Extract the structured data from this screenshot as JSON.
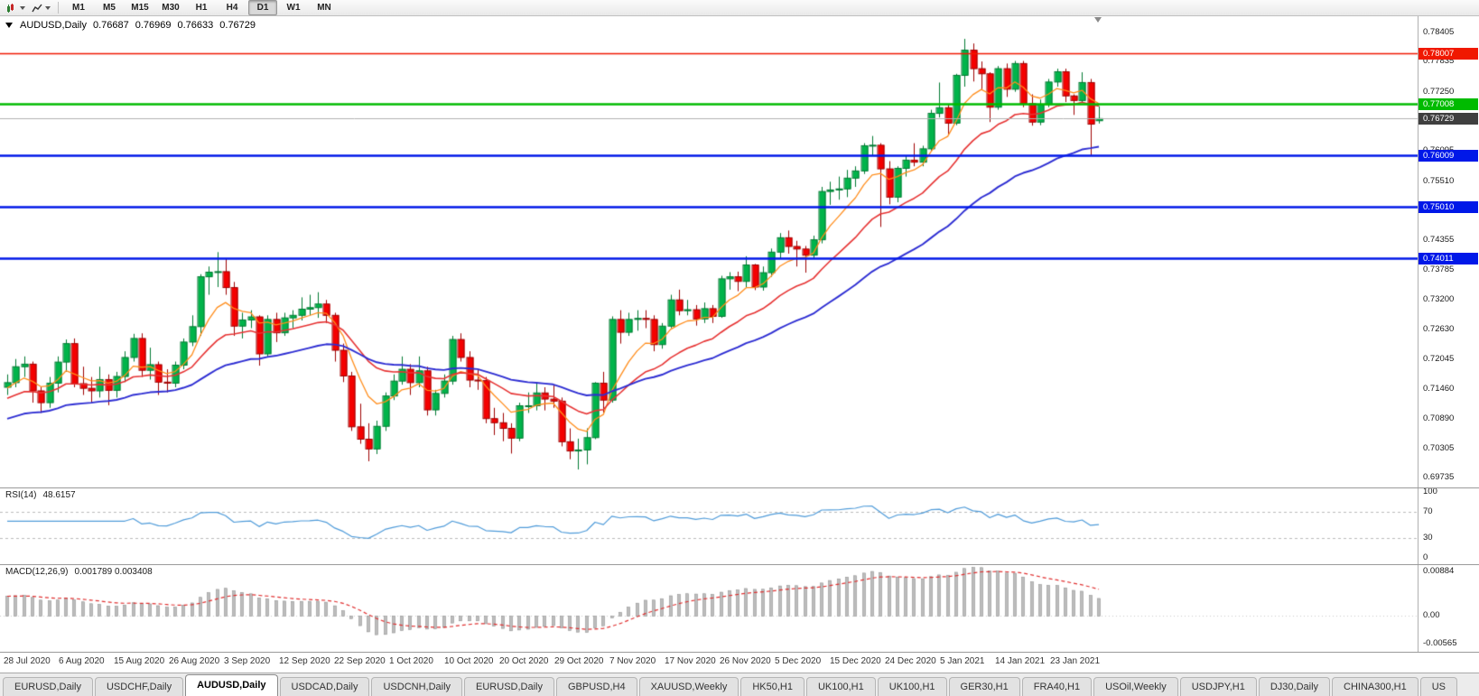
{
  "toolbar": {
    "timeframes": [
      "M1",
      "M5",
      "M15",
      "M30",
      "H1",
      "H4",
      "D1",
      "W1",
      "MN"
    ],
    "active_timeframe": "D1"
  },
  "header": {
    "symbol": "AUDUSD,Daily",
    "open": "0.76687",
    "high": "0.76969",
    "low": "0.76633",
    "close": "0.76729"
  },
  "panes": {
    "rsi_label": "RSI(14)",
    "rsi_value": "48.6157",
    "macd_label": "MACD(12,26,9)",
    "macd_values": "0.001789 0.003408"
  },
  "price_axis": {
    "ticks": [
      "0.78405",
      "0.77835",
      "0.77250",
      "0.76680",
      "0.76095",
      "0.75510",
      "0.74925",
      "0.74355",
      "0.73785",
      "0.73200",
      "0.72630",
      "0.72045",
      "0.71460",
      "0.70890",
      "0.70305",
      "0.69735"
    ]
  },
  "levels": [
    {
      "name": "resistance-line",
      "label": "0.78007",
      "color": "#f01800",
      "line_width": 1.5
    },
    {
      "name": "support-line-green",
      "label": "0.77008",
      "color": "#00bb00",
      "line_width": 2.5
    },
    {
      "name": "support-line-1",
      "label": "0.76009",
      "color": "#0018e8",
      "line_width": 2.5
    },
    {
      "name": "support-line-2",
      "label": "0.75010",
      "color": "#0018e8",
      "line_width": 2.5
    },
    {
      "name": "support-line-3",
      "label": "0.74011",
      "color": "#0018e8",
      "line_width": 2.5
    }
  ],
  "current_price": {
    "label": "0.76729",
    "value": 0.76729,
    "flag_color": "#3f3f3f",
    "line_color": "#b0b0b0"
  },
  "rsi_axis": {
    "ticks": [
      "100",
      "70",
      "30",
      "0"
    ]
  },
  "macd_axis": {
    "ticks": [
      "0.00884",
      "0.00",
      "-0.00565"
    ]
  },
  "date_axis": [
    "28 Jul 2020",
    "6 Aug 2020",
    "15 Aug 2020",
    "26 Aug 2020",
    "3 Sep 2020",
    "12 Sep 2020",
    "22 Sep 2020",
    "1 Oct 2020",
    "10 Oct 2020",
    "20 Oct 2020",
    "29 Oct 2020",
    "7 Nov 2020",
    "17 Nov 2020",
    "26 Nov 2020",
    "5 Dec 2020",
    "15 Dec 2020",
    "24 Dec 2020",
    "5 Jan 2021",
    "14 Jan 2021",
    "23 Jan 2021"
  ],
  "tabs": {
    "active_index": 2,
    "items": [
      "EURUSD,Daily",
      "USDCHF,Daily",
      "AUDUSD,Daily",
      "USDCAD,Daily",
      "USDCNH,Daily",
      "EURUSD,Daily",
      "GBPUSD,H4",
      "XAUUSD,Weekly",
      "HK50,H1",
      "UK100,H1",
      "UK100,H1",
      "GER30,H1",
      "FRA40,H1",
      "USOil,Weekly",
      "USDJPY,H1",
      "DJ30,Daily",
      "CHINA300,H1",
      "US"
    ]
  },
  "chart_data": [
    {
      "type": "candlestick",
      "symbol": "AUDUSD",
      "timeframe": "Daily",
      "title": "AUDUSD,Daily",
      "last_ohlc": [
        0.76687,
        0.76969,
        0.76633,
        0.76729
      ],
      "ylim": [
        0.6955,
        0.7872
      ],
      "up_color": "#00b44a",
      "down_color": "#f40000",
      "moving_averages": [
        {
          "name": "ma-fast",
          "period": 7,
          "seed": 0.7145,
          "color": "#ff8c1a",
          "width": 1.3
        },
        {
          "name": "ma-mid",
          "period": 18,
          "seed": 0.7125,
          "color": "#e63232",
          "width": 1.6
        },
        {
          "name": "ma-slow",
          "period": 40,
          "seed": 0.7085,
          "color": "#2d2dd2",
          "width": 1.9
        }
      ],
      "candles": [
        [
          0.715,
          0.7175,
          0.7135,
          0.7159
        ],
        [
          0.7159,
          0.7205,
          0.715,
          0.719
        ],
        [
          0.719,
          0.721,
          0.717,
          0.7195
        ],
        [
          0.7195,
          0.72,
          0.712,
          0.7143
        ],
        [
          0.7143,
          0.715,
          0.71,
          0.712
        ],
        [
          0.712,
          0.717,
          0.711,
          0.7158
        ],
        [
          0.7158,
          0.721,
          0.714,
          0.7199
        ],
        [
          0.7199,
          0.7243,
          0.718,
          0.7235
        ],
        [
          0.7235,
          0.7245,
          0.715,
          0.7157
        ],
        [
          0.7157,
          0.719,
          0.7135,
          0.7148
        ],
        [
          0.7148,
          0.717,
          0.712,
          0.7143
        ],
        [
          0.7143,
          0.719,
          0.713,
          0.7165
        ],
        [
          0.7165,
          0.7175,
          0.7115,
          0.7144
        ],
        [
          0.7144,
          0.718,
          0.713,
          0.7171
        ],
        [
          0.7171,
          0.722,
          0.716,
          0.7208
        ],
        [
          0.7208,
          0.7254,
          0.72,
          0.7245
        ],
        [
          0.7245,
          0.7255,
          0.717,
          0.7183
        ],
        [
          0.7183,
          0.7227,
          0.7165,
          0.7194
        ],
        [
          0.7194,
          0.72,
          0.7135,
          0.716
        ],
        [
          0.716,
          0.7185,
          0.714,
          0.7158
        ],
        [
          0.7158,
          0.72,
          0.715,
          0.7193
        ],
        [
          0.7193,
          0.7245,
          0.7185,
          0.7238
        ],
        [
          0.7238,
          0.729,
          0.723,
          0.7268
        ],
        [
          0.7268,
          0.737,
          0.725,
          0.7365
        ],
        [
          0.7365,
          0.7385,
          0.733,
          0.7374
        ],
        [
          0.7374,
          0.7413,
          0.7345,
          0.7375
        ],
        [
          0.7375,
          0.74,
          0.733,
          0.7344
        ],
        [
          0.7344,
          0.7355,
          0.725,
          0.7269
        ],
        [
          0.7269,
          0.7295,
          0.7245,
          0.7281
        ],
        [
          0.7281,
          0.73,
          0.7265,
          0.7287
        ],
        [
          0.7287,
          0.729,
          0.7192,
          0.7215
        ],
        [
          0.7215,
          0.729,
          0.721,
          0.7282
        ],
        [
          0.7282,
          0.7295,
          0.7238,
          0.7256
        ],
        [
          0.7256,
          0.7295,
          0.725,
          0.7285
        ],
        [
          0.7285,
          0.73,
          0.7265,
          0.729
        ],
        [
          0.729,
          0.7325,
          0.728,
          0.7302
        ],
        [
          0.7302,
          0.733,
          0.729,
          0.7305
        ],
        [
          0.7305,
          0.7335,
          0.7285,
          0.7312
        ],
        [
          0.7312,
          0.732,
          0.7275,
          0.729
        ],
        [
          0.729,
          0.7295,
          0.72,
          0.7222
        ],
        [
          0.7222,
          0.7235,
          0.716,
          0.7172
        ],
        [
          0.7172,
          0.718,
          0.7065,
          0.7073
        ],
        [
          0.7073,
          0.7118,
          0.704,
          0.7049
        ],
        [
          0.7049,
          0.708,
          0.7006,
          0.703
        ],
        [
          0.703,
          0.7085,
          0.702,
          0.7074
        ],
        [
          0.7074,
          0.714,
          0.7065,
          0.7133
        ],
        [
          0.7133,
          0.7175,
          0.7125,
          0.7162
        ],
        [
          0.7162,
          0.721,
          0.7155,
          0.7185
        ],
        [
          0.7185,
          0.7195,
          0.7135,
          0.7159
        ],
        [
          0.7159,
          0.721,
          0.715,
          0.7182
        ],
        [
          0.7182,
          0.719,
          0.7095,
          0.7106
        ],
        [
          0.7106,
          0.7145,
          0.7095,
          0.7138
        ],
        [
          0.7138,
          0.7175,
          0.713,
          0.7162
        ],
        [
          0.7162,
          0.725,
          0.7155,
          0.7243
        ],
        [
          0.7243,
          0.7255,
          0.72,
          0.7208
        ],
        [
          0.7208,
          0.722,
          0.715,
          0.7164
        ],
        [
          0.7164,
          0.7185,
          0.7145,
          0.7163
        ],
        [
          0.7163,
          0.717,
          0.708,
          0.7089
        ],
        [
          0.7089,
          0.711,
          0.7057,
          0.7081
        ],
        [
          0.7081,
          0.71,
          0.7045,
          0.707
        ],
        [
          0.707,
          0.708,
          0.7021,
          0.7051
        ],
        [
          0.7051,
          0.712,
          0.7045,
          0.7114
        ],
        [
          0.7114,
          0.714,
          0.71,
          0.7114
        ],
        [
          0.7114,
          0.716,
          0.7105,
          0.7139
        ],
        [
          0.7139,
          0.715,
          0.7105,
          0.7127
        ],
        [
          0.7127,
          0.7155,
          0.711,
          0.7123
        ],
        [
          0.7123,
          0.713,
          0.7035,
          0.7044
        ],
        [
          0.7044,
          0.707,
          0.701,
          0.7026
        ],
        [
          0.7026,
          0.705,
          0.699,
          0.7028
        ],
        [
          0.7028,
          0.707,
          0.7,
          0.7052
        ],
        [
          0.7052,
          0.716,
          0.7049,
          0.7158
        ],
        [
          0.7158,
          0.718,
          0.71,
          0.7125
        ],
        [
          0.7125,
          0.7288,
          0.712,
          0.7282
        ],
        [
          0.7282,
          0.73,
          0.7235,
          0.7257
        ],
        [
          0.7257,
          0.7295,
          0.725,
          0.7282
        ],
        [
          0.7282,
          0.73,
          0.726,
          0.7284
        ],
        [
          0.7284,
          0.73,
          0.7265,
          0.7282
        ],
        [
          0.7282,
          0.729,
          0.722,
          0.7233
        ],
        [
          0.7233,
          0.7275,
          0.7225,
          0.7269
        ],
        [
          0.7269,
          0.733,
          0.7265,
          0.732
        ],
        [
          0.732,
          0.734,
          0.729,
          0.7299
        ],
        [
          0.7299,
          0.732,
          0.729,
          0.7301
        ],
        [
          0.7301,
          0.731,
          0.727,
          0.7283
        ],
        [
          0.7283,
          0.7315,
          0.7275,
          0.7303
        ],
        [
          0.7303,
          0.731,
          0.7275,
          0.7288
        ],
        [
          0.7288,
          0.7367,
          0.7285,
          0.7361
        ],
        [
          0.7361,
          0.7374,
          0.734,
          0.7365
        ],
        [
          0.7365,
          0.7375,
          0.7337,
          0.7356
        ],
        [
          0.7356,
          0.7405,
          0.7345,
          0.7388
        ],
        [
          0.7388,
          0.739,
          0.7339,
          0.7345
        ],
        [
          0.7345,
          0.7385,
          0.7338,
          0.7373
        ],
        [
          0.7373,
          0.742,
          0.7365,
          0.7413
        ],
        [
          0.7413,
          0.745,
          0.74,
          0.7441
        ],
        [
          0.7441,
          0.7455,
          0.741,
          0.7424
        ],
        [
          0.7424,
          0.7435,
          0.7385,
          0.7419
        ],
        [
          0.7419,
          0.7425,
          0.7373,
          0.7407
        ],
        [
          0.7407,
          0.7445,
          0.74,
          0.7437
        ],
        [
          0.7437,
          0.754,
          0.743,
          0.7531
        ],
        [
          0.7531,
          0.755,
          0.7505,
          0.7534
        ],
        [
          0.7534,
          0.756,
          0.7515,
          0.7536
        ],
        [
          0.7536,
          0.7573,
          0.752,
          0.7557
        ],
        [
          0.7557,
          0.758,
          0.754,
          0.7571
        ],
        [
          0.7571,
          0.7625,
          0.7565,
          0.762
        ],
        [
          0.762,
          0.7639,
          0.76,
          0.7621
        ],
        [
          0.7621,
          0.7625,
          0.7462,
          0.7575
        ],
        [
          0.7575,
          0.759,
          0.7506,
          0.752
        ],
        [
          0.752,
          0.758,
          0.751,
          0.7576
        ],
        [
          0.7576,
          0.76,
          0.756,
          0.7592
        ],
        [
          0.7592,
          0.7625,
          0.758,
          0.7588
        ],
        [
          0.7588,
          0.762,
          0.758,
          0.7614
        ],
        [
          0.7614,
          0.769,
          0.761,
          0.7683
        ],
        [
          0.7683,
          0.7743,
          0.7675,
          0.7694
        ],
        [
          0.7694,
          0.77,
          0.7642,
          0.7664
        ],
        [
          0.7664,
          0.776,
          0.766,
          0.7757
        ],
        [
          0.7757,
          0.7828,
          0.7735,
          0.7806
        ],
        [
          0.7806,
          0.7819,
          0.7745,
          0.777
        ],
        [
          0.777,
          0.7784,
          0.773,
          0.776
        ],
        [
          0.776,
          0.7763,
          0.7666,
          0.7695
        ],
        [
          0.7695,
          0.7775,
          0.769,
          0.777
        ],
        [
          0.777,
          0.778,
          0.7715,
          0.773
        ],
        [
          0.773,
          0.7785,
          0.7725,
          0.778
        ],
        [
          0.778,
          0.7785,
          0.7695,
          0.7702
        ],
        [
          0.7702,
          0.772,
          0.7659,
          0.7666
        ],
        [
          0.7666,
          0.771,
          0.766,
          0.77
        ],
        [
          0.77,
          0.775,
          0.7695,
          0.7744
        ],
        [
          0.7744,
          0.777,
          0.7735,
          0.7764
        ],
        [
          0.7764,
          0.777,
          0.7705,
          0.7717
        ],
        [
          0.7717,
          0.772,
          0.768,
          0.7708
        ],
        [
          0.7708,
          0.7763,
          0.7705,
          0.7743
        ],
        [
          0.7743,
          0.775,
          0.7601,
          0.7662
        ],
        [
          0.76687,
          0.76969,
          0.76633,
          0.76729
        ]
      ]
    },
    {
      "type": "line",
      "name": "RSI(14)",
      "period": 14,
      "current_value": 48.6157,
      "ylim": [
        0,
        100
      ],
      "levels": [
        70,
        30
      ],
      "color": "#4f9bd9"
    },
    {
      "type": "macd",
      "name": "MACD(12,26,9)",
      "fast": 12,
      "slow": 26,
      "signal": 9,
      "current_values": [
        0.001789,
        0.003408
      ],
      "ylim": [
        -0.00565,
        0.00884
      ],
      "histogram_color": "#bdbdbd",
      "histogram_edge_color": "#8f8f8f",
      "signal_color": "#e03030"
    }
  ]
}
